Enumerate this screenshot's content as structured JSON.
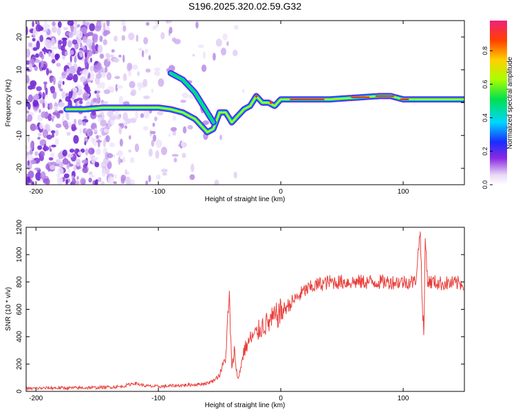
{
  "title": "S196.2025.320.02.59.G32",
  "chart_data": [
    {
      "type": "heatmap",
      "xlabel": "Height of straight line (km)",
      "ylabel": "Frequency (Hz)",
      "xlim": [
        -208,
        150
      ],
      "ylim": [
        -25,
        25
      ],
      "xticks": [
        -200,
        -100,
        0,
        100
      ],
      "yticks": [
        -20,
        -10,
        0,
        10,
        20
      ],
      "colorbar": {
        "label": "Normalized spectral amplitude",
        "range": [
          0.0,
          0.98
        ],
        "ticks": [
          0.0,
          0.2,
          0.4,
          0.6,
          0.8
        ]
      },
      "ridges": [
        {
          "name": "main",
          "x": [
            -175,
            -160,
            -145,
            -130,
            -115,
            -100,
            -90,
            -80,
            -70,
            -60,
            -55,
            -50,
            -45,
            -40,
            -35,
            -30,
            -25,
            -20,
            -15,
            -10,
            -5,
            0,
            5,
            20,
            40,
            60,
            80,
            90,
            100,
            110,
            120,
            150
          ],
          "y": [
            -2,
            -2,
            -1.5,
            -1.5,
            -1.5,
            -1.5,
            -2,
            -3,
            -5,
            -9,
            -8,
            -3,
            -3,
            -6,
            -4,
            -2,
            -1,
            2,
            0,
            0,
            -1,
            1,
            1,
            1,
            1,
            1.5,
            2,
            2,
            1,
            1,
            1,
            1
          ]
        },
        {
          "name": "upper-branch",
          "x": [
            -90,
            -80,
            -75,
            -70,
            -65,
            -60,
            -55
          ],
          "y": [
            9,
            7,
            5,
            3,
            0,
            -3,
            -6
          ]
        }
      ]
    },
    {
      "type": "line",
      "xlabel": "Height of straight line (km)",
      "ylabel": "SNR (10 * v/v)",
      "xlim": [
        -208,
        150
      ],
      "ylim": [
        0,
        1200
      ],
      "xticks": [
        -200,
        -100,
        0,
        100
      ],
      "yticks": [
        0,
        200,
        400,
        600,
        800,
        1000,
        1200
      ],
      "series": [
        {
          "name": "SNR",
          "color": "#e8403c",
          "x": [
            -208,
            -190,
            -170,
            -150,
            -130,
            -120,
            -110,
            -100,
            -90,
            -80,
            -70,
            -60,
            -55,
            -50,
            -45,
            -42,
            -40,
            -38,
            -35,
            -30,
            -25,
            -20,
            -15,
            -10,
            -5,
            0,
            5,
            10,
            15,
            20,
            30,
            40,
            60,
            80,
            100,
            110,
            114,
            116,
            117,
            118,
            120,
            125,
            130,
            150
          ],
          "y": [
            20,
            25,
            25,
            28,
            35,
            60,
            40,
            35,
            40,
            45,
            50,
            60,
            80,
            120,
            250,
            700,
            150,
            300,
            80,
            300,
            380,
            420,
            480,
            500,
            540,
            580,
            620,
            660,
            700,
            740,
            780,
            800,
            800,
            800,
            800,
            800,
            1180,
            500,
            430,
            1130,
            800,
            800,
            790,
            790
          ]
        }
      ]
    }
  ]
}
